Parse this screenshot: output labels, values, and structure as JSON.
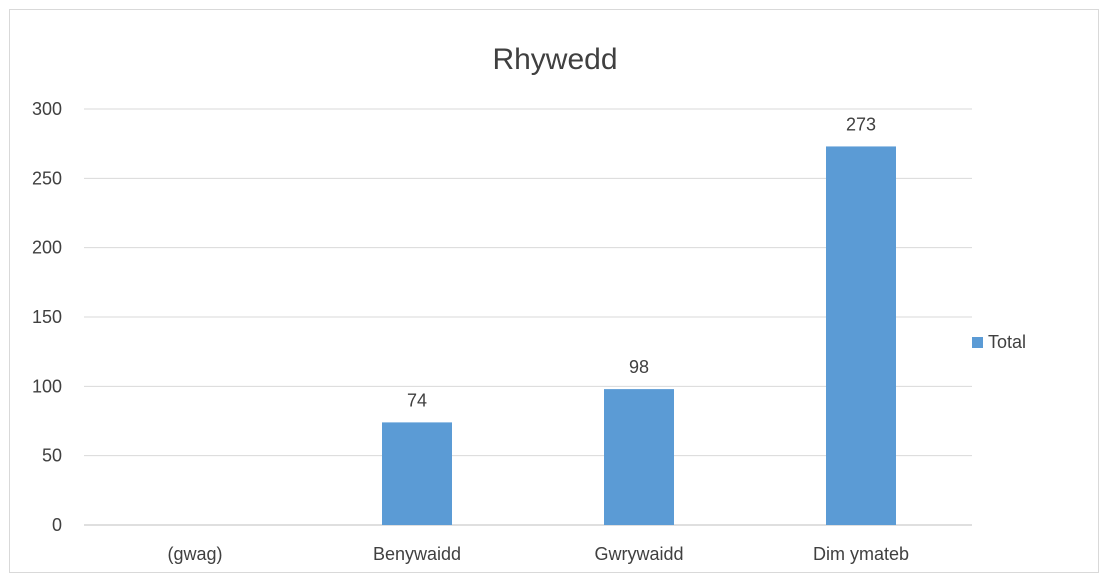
{
  "chart_data": {
    "type": "bar",
    "title": "Rhywedd",
    "categories": [
      "(gwag)",
      "Benywaidd",
      "Gwrywaidd",
      "Dim ymateb"
    ],
    "series": [
      {
        "name": "Total",
        "values": [
          null,
          74,
          98,
          273
        ],
        "color": "#5b9bd5"
      }
    ],
    "data_labels": [
      "",
      "74",
      "98",
      "273"
    ],
    "y_ticks": [
      "0",
      "50",
      "100",
      "150",
      "200",
      "250",
      "300"
    ],
    "ylim": [
      0,
      300
    ],
    "grid": true,
    "legend_position": "right"
  }
}
